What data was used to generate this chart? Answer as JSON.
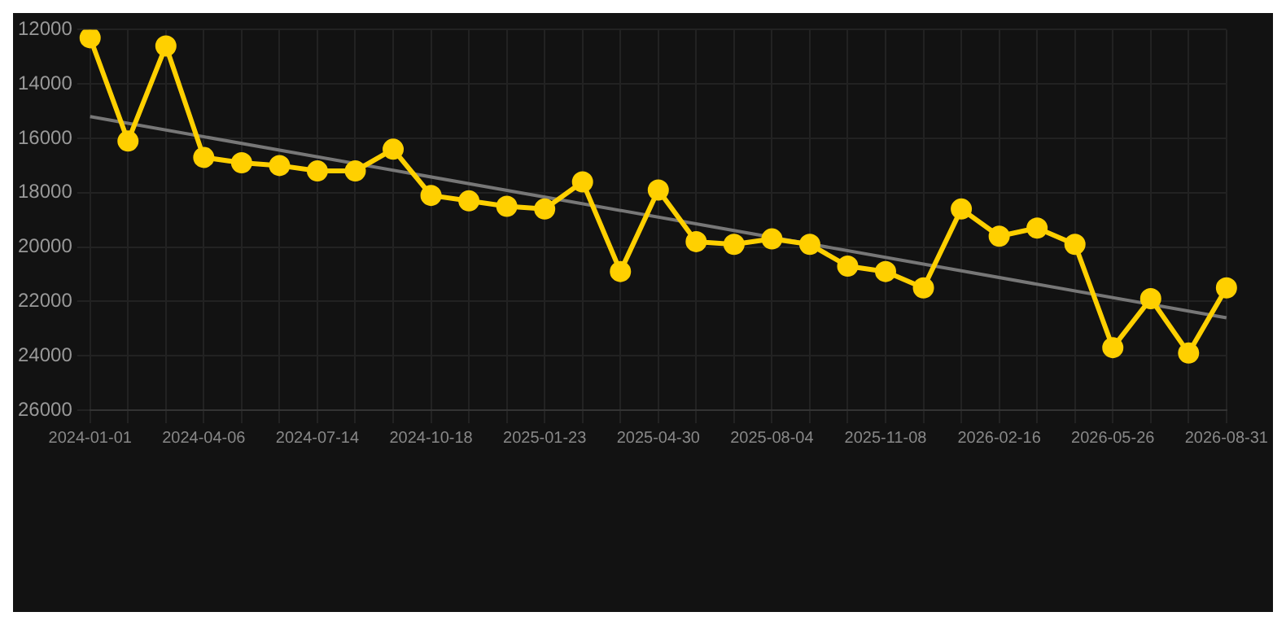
{
  "chart_data": {
    "type": "line",
    "categories": [
      "2024-01-01",
      null,
      null,
      "2024-04-06",
      null,
      null,
      "2024-07-14",
      null,
      null,
      "2024-10-18",
      null,
      null,
      "2025-01-23",
      null,
      null,
      "2025-04-30",
      null,
      null,
      "2025-08-04",
      null,
      null,
      "2025-11-08",
      null,
      null,
      "2026-02-16",
      null,
      null,
      "2026-05-26",
      null,
      null,
      "2026-08-31"
    ],
    "series": [
      {
        "color": "#ffd000",
        "marker": "circle",
        "values": [
          12300,
          16100,
          12600,
          16700,
          16900,
          17000,
          17200,
          17200,
          16400,
          18100,
          18300,
          18500,
          18600,
          17600,
          20900,
          17900,
          19800,
          19900,
          19700,
          19900,
          20700,
          20900,
          21500,
          18600,
          19600,
          19300,
          19900,
          23700,
          21900,
          23900,
          21500
        ]
      },
      {
        "color": "#777777",
        "marker": "none",
        "values": [
          15200,
          null,
          null,
          null,
          null,
          null,
          null,
          null,
          null,
          null,
          null,
          null,
          null,
          null,
          null,
          null,
          null,
          null,
          null,
          null,
          null,
          null,
          null,
          null,
          null,
          null,
          null,
          null,
          null,
          null,
          22600
        ]
      }
    ],
    "ylim": [
      26000,
      12000
    ],
    "yticks": [
      12000,
      14000,
      16000,
      18000,
      20000,
      22000,
      24000,
      26000
    ],
    "grid": true,
    "legend": false
  }
}
